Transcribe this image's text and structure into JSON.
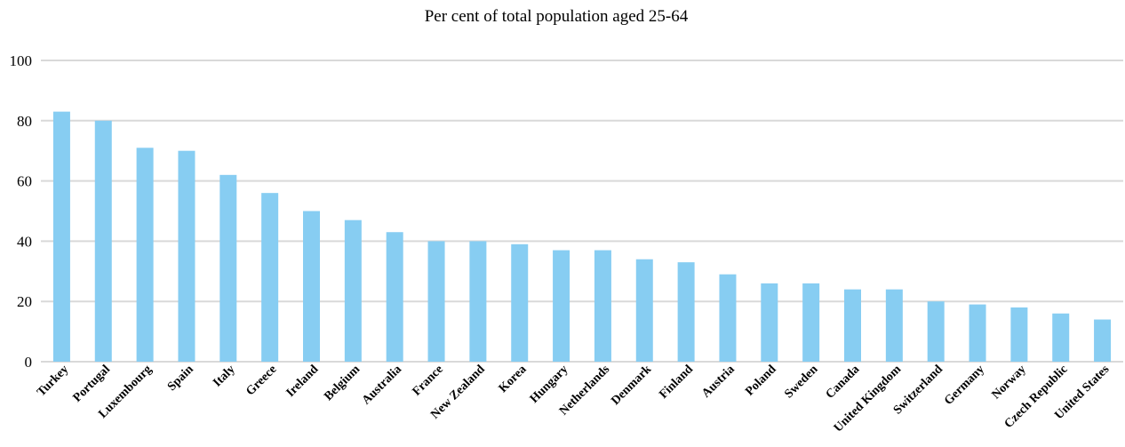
{
  "chart_data": {
    "type": "bar",
    "title": "Per cent of total population aged 25-64",
    "xlabel": "",
    "ylabel": "",
    "ylim": [
      0,
      100
    ],
    "yticks": [
      "0",
      "20",
      "40",
      "60",
      "80",
      "100"
    ],
    "grid": true,
    "bar_color": "#87cdf2",
    "categories": [
      "Turkey",
      "Portugal",
      "Luxembourg",
      "Spain",
      "Italy",
      "Greece",
      "Ireland",
      "Belgium",
      "Australia",
      "France",
      "New Zealand",
      "Korea",
      "Hungary",
      "Netherlands",
      "Denmark",
      "Finland",
      "Austria",
      "Poland",
      "Sweden",
      "Canada",
      "United Kingdom",
      "Switzerland",
      "Germany",
      "Norway",
      "Czech Republic",
      "United States"
    ],
    "values": [
      83,
      80,
      71,
      70,
      62,
      56,
      50,
      47,
      43,
      40,
      40,
      39,
      37,
      37,
      34,
      33,
      29,
      26,
      26,
      24,
      24,
      20,
      19,
      18,
      16,
      14
    ]
  }
}
